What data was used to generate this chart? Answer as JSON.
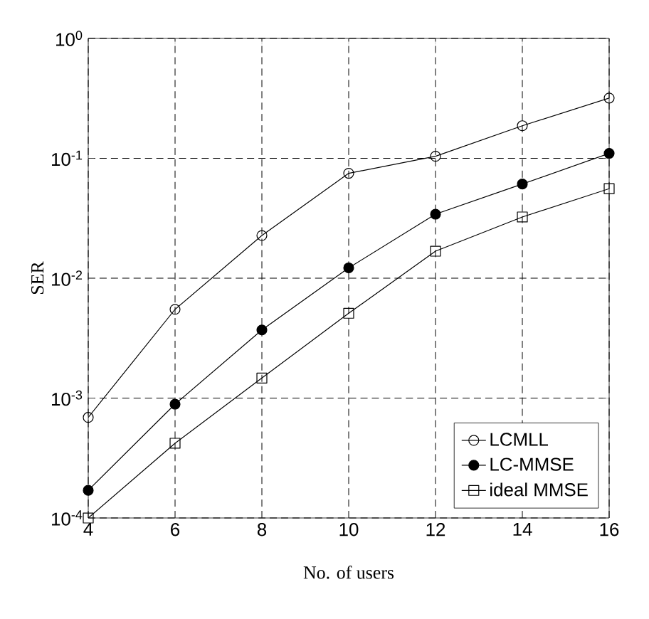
{
  "chart_data": {
    "type": "line",
    "xlabel": "No. of users",
    "ylabel": "SER",
    "x": [
      4,
      6,
      8,
      10,
      12,
      14,
      16
    ],
    "series": [
      {
        "name": "LCMLL",
        "color": "#000000",
        "marker": "circle",
        "values": [
          0.00069,
          0.0055,
          0.0227,
          0.075,
          0.104,
          0.187,
          0.318
        ]
      },
      {
        "name": "LC-MMSE",
        "color": "#000000",
        "marker": "filled circle",
        "values": [
          0.00017,
          0.00089,
          0.0037,
          0.0122,
          0.0342,
          0.061,
          0.11
        ]
      },
      {
        "name": "ideal MMSE",
        "color": "#000000",
        "marker": "square",
        "values": [
          0.0001,
          0.00042,
          0.00147,
          0.0051,
          0.0168,
          0.0324,
          0.0558
        ]
      }
    ],
    "xlim": [
      4,
      16
    ],
    "xticks": [
      4,
      6,
      8,
      10,
      12,
      14,
      16
    ],
    "ylim": [
      0.0001,
      1
    ],
    "yticks": [
      {
        "value": 0.0001,
        "label": "10$^{-4}$"
      },
      {
        "value": 0.001,
        "label": "10$^{-3}$"
      },
      {
        "value": 0.01,
        "label": "10$^{-2}$"
      },
      {
        "value": 0.1,
        "label": "10$^{-1}$"
      },
      {
        "value": 1,
        "label": "10$^{0}$"
      }
    ],
    "log": "y",
    "grid": true,
    "legend": "bottom right",
    "line_style": "solid"
  }
}
